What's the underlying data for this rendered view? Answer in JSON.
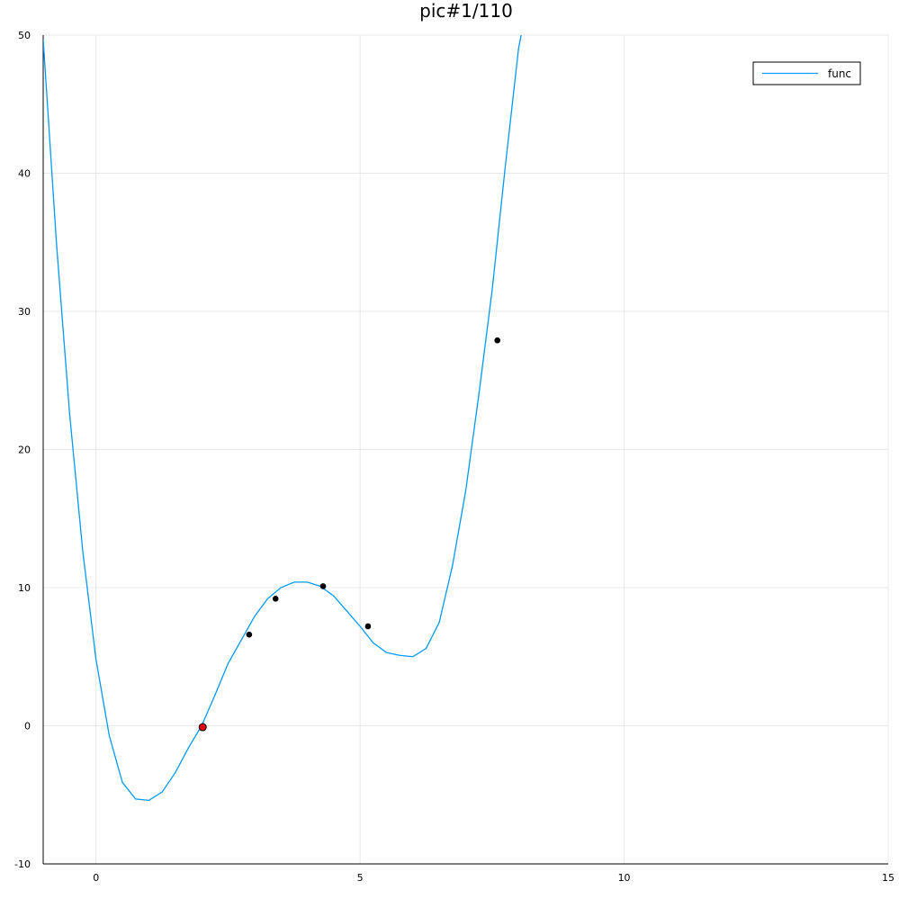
{
  "chart_data": {
    "type": "line",
    "title": "pic#1/110",
    "xlabel": "",
    "ylabel": "",
    "xlim": [
      -1,
      15
    ],
    "ylim": [
      -10,
      50
    ],
    "x_ticks": [
      0,
      5,
      10,
      15
    ],
    "y_ticks": [
      -10,
      0,
      10,
      20,
      30,
      40,
      50
    ],
    "grid": true,
    "legend_position": "top-right",
    "series": [
      {
        "name": "func",
        "color": "#009AFA",
        "x": [
          -1.0,
          -0.75,
          -0.5,
          -0.25,
          0.0,
          0.25,
          0.5,
          0.75,
          1.0,
          1.25,
          1.5,
          1.75,
          2.0,
          2.25,
          2.5,
          2.75,
          3.0,
          3.25,
          3.5,
          3.75,
          4.0,
          4.25,
          4.5,
          4.75,
          5.0,
          5.25,
          5.5,
          5.75,
          6.0,
          6.25,
          6.5,
          6.75,
          7.0,
          7.25,
          7.5,
          7.75,
          8.0,
          8.05
        ],
        "y": [
          49.7,
          35.0,
          22.6,
          12.6,
          4.8,
          -0.7,
          -4.1,
          -5.3,
          -5.4,
          -4.8,
          -3.4,
          -1.6,
          0.0,
          2.2,
          4.5,
          6.2,
          7.9,
          9.2,
          10.0,
          10.4,
          10.4,
          10.1,
          9.4,
          8.3,
          7.2,
          6.0,
          5.3,
          5.1,
          5.0,
          5.6,
          7.5,
          11.6,
          17.0,
          24.0,
          31.5,
          40.5,
          49.0,
          50.0
        ]
      }
    ],
    "points": {
      "color": "#000000",
      "x": [
        2.9,
        3.4,
        4.3,
        5.15,
        7.6
      ],
      "y": [
        6.6,
        9.2,
        10.1,
        7.2,
        27.9
      ]
    },
    "highlight_point": {
      "color": "#e8000b",
      "x": 2.02,
      "y": -0.1
    }
  }
}
